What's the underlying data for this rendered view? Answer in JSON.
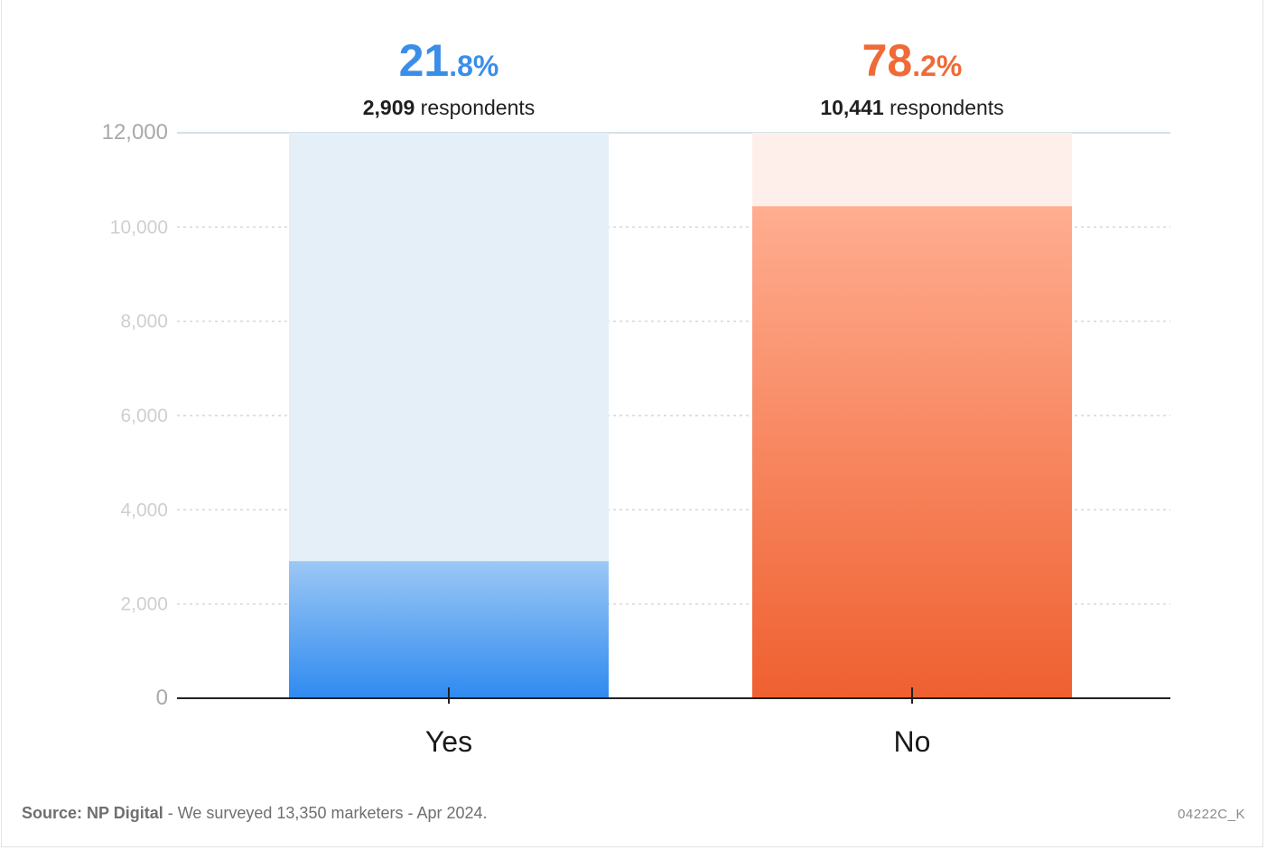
{
  "chart_data": {
    "type": "bar",
    "categories": [
      "Yes",
      "No"
    ],
    "values": [
      2909,
      10441
    ],
    "percent_whole": [
      "21",
      "78"
    ],
    "percent_frac": [
      ".8%",
      ".2%"
    ],
    "respondent_counts": [
      "2,909",
      "10,441"
    ],
    "respondents_word": "respondents",
    "ylim": [
      0,
      12000
    ],
    "yticks": [
      "0",
      "2,000",
      "4,000",
      "6,000",
      "8,000",
      "10,000",
      "12,000"
    ],
    "ytick_values": [
      0,
      2000,
      4000,
      6000,
      8000,
      10000,
      12000
    ],
    "grid": "dashed horizontal",
    "colors": {
      "yes_top": "#9cc8f5",
      "yes_bottom": "#2f8af0",
      "yes_track": "#e5eff7",
      "yes_text": "#3b8ee8",
      "no_top": "#ffad90",
      "no_bottom": "#ef6030",
      "no_track": "#ffefea",
      "no_text": "#ef6a37"
    }
  },
  "footer": {
    "source_label": "Source: NP Digital",
    "source_text": " - We surveyed 13,350 marketers - Apr 2024.",
    "code": "04222C_K"
  }
}
